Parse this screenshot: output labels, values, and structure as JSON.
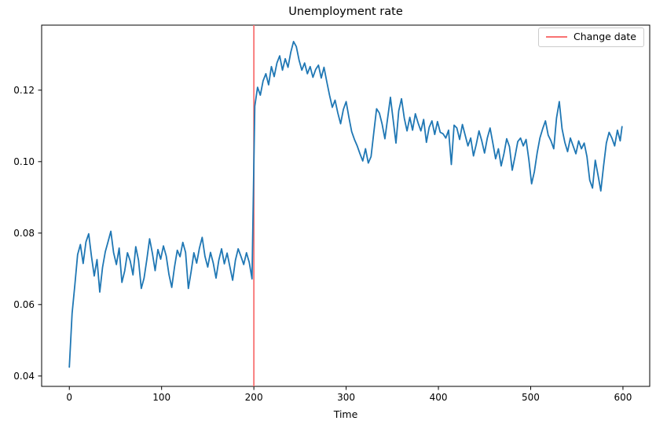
{
  "window": {
    "title": "Unemployment rate figure"
  },
  "chart_data": {
    "type": "line",
    "title": "Unemployment rate",
    "xlabel": "Time",
    "ylabel": "",
    "xlim": [
      -30,
      629
    ],
    "ylim": [
      0.0371,
      0.1382
    ],
    "xticks": [
      0,
      100,
      200,
      300,
      400,
      500,
      600
    ],
    "yticks": [
      0.04,
      0.06,
      0.08,
      0.1,
      0.12
    ],
    "grid": false,
    "legend": {
      "position": "upper right",
      "entries": [
        "Change date"
      ]
    },
    "colors": {
      "series": "#1f77b4",
      "change_line": "#f87272",
      "spine": "#000000"
    },
    "annotations": {
      "change_line": {
        "type": "vline",
        "x": 200,
        "color": "#f87272",
        "label": "Change date"
      }
    },
    "series": [
      {
        "name": "Unemployment rate",
        "color": "#1f77b4",
        "line_width": 1.8,
        "x_start": 0,
        "x_step": 3,
        "x_last": 599,
        "values": [
          0.0425,
          0.0575,
          0.0655,
          0.074,
          0.0768,
          0.0715,
          0.0775,
          0.0798,
          0.0735,
          0.068,
          0.0726,
          0.0635,
          0.0704,
          0.0748,
          0.0776,
          0.0805,
          0.0745,
          0.0712,
          0.0758,
          0.0662,
          0.0694,
          0.0745,
          0.0722,
          0.0683,
          0.0762,
          0.0724,
          0.0645,
          0.0674,
          0.0726,
          0.0784,
          0.0744,
          0.0695,
          0.0754,
          0.0727,
          0.0764,
          0.0736,
          0.0684,
          0.0648,
          0.0705,
          0.0752,
          0.0734,
          0.0774,
          0.0746,
          0.0645,
          0.0692,
          0.0745,
          0.0716,
          0.0758,
          0.0788,
          0.0735,
          0.0705,
          0.0746,
          0.0716,
          0.0674,
          0.0724,
          0.0756,
          0.0714,
          0.0744,
          0.0706,
          0.0668,
          0.0724,
          0.0756,
          0.0735,
          0.0712,
          0.0745,
          0.0718,
          0.0672,
          0.1155,
          0.1208,
          0.1186,
          0.1226,
          0.1246,
          0.1215,
          0.1266,
          0.1238,
          0.1276,
          0.1296,
          0.1256,
          0.1288,
          0.1264,
          0.1306,
          0.1336,
          0.1322,
          0.1284,
          0.1256,
          0.1276,
          0.1246,
          0.1266,
          0.1236,
          0.1258,
          0.127,
          0.1234,
          0.1264,
          0.1224,
          0.1186,
          0.1152,
          0.1172,
          0.1136,
          0.1106,
          0.1146,
          0.1168,
          0.1124,
          0.1084,
          0.1062,
          0.1044,
          0.1022,
          0.1002,
          0.1036,
          0.0996,
          0.1014,
          0.1082,
          0.1148,
          0.1136,
          0.1105,
          0.1064,
          0.1122,
          0.118,
          0.1116,
          0.1052,
          0.1142,
          0.1176,
          0.1122,
          0.1086,
          0.1124,
          0.1088,
          0.1134,
          0.1108,
          0.1086,
          0.1118,
          0.1054,
          0.1096,
          0.1114,
          0.1076,
          0.1112,
          0.1082,
          0.1078,
          0.1066,
          0.1088,
          0.0992,
          0.1102,
          0.1094,
          0.1062,
          0.1104,
          0.1074,
          0.1044,
          0.1066,
          0.1016,
          0.1048,
          0.1086,
          0.1058,
          0.1024,
          0.1066,
          0.1094,
          0.1052,
          0.1008,
          0.1036,
          0.0988,
          0.1022,
          0.1064,
          0.1042,
          0.0976,
          0.1014,
          0.1056,
          0.1066,
          0.1044,
          0.1062,
          0.1006,
          0.0938,
          0.0972,
          0.1024,
          0.1066,
          0.1092,
          0.1114,
          0.1074,
          0.1058,
          0.1036,
          0.1122,
          0.1168,
          0.1092,
          0.1054,
          0.1028,
          0.1066,
          0.1044,
          0.1022,
          0.1058,
          0.1036,
          0.1052,
          0.1014,
          0.0948,
          0.0926,
          0.1004,
          0.0962,
          0.0918,
          0.0988,
          0.1052,
          0.1082,
          0.1066,
          0.1044,
          0.1088,
          0.1058,
          0.1098
        ]
      }
    ]
  }
}
